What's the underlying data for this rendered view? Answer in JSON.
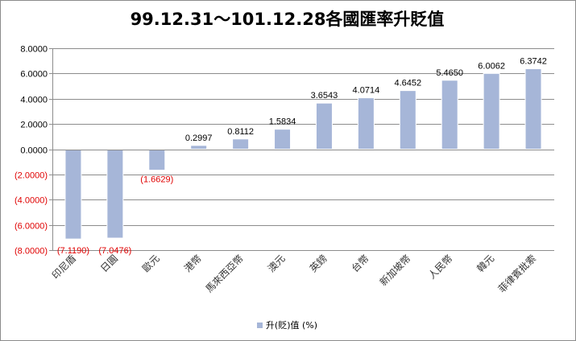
{
  "chart_data": {
    "type": "bar",
    "title": "99.12.31～101.12.28各國匯率升貶值",
    "categories": [
      "印尼盾",
      "日圓",
      "歐元",
      "港幣",
      "馬來西亞幣",
      "澳元",
      "英鎊",
      "台幣",
      "新加坡幣",
      "人民幣",
      "韓元",
      "菲律賓批索"
    ],
    "series": [
      {
        "name": "升(貶)值 (%)",
        "values": [
          -7.119,
          -7.0476,
          -1.6629,
          0.2997,
          0.8112,
          1.5834,
          3.6543,
          4.0714,
          4.6452,
          5.465,
          6.0062,
          6.3742
        ]
      }
    ],
    "data_labels": [
      "(7.1190)",
      "(7.0476)",
      "(1.6629)",
      "0.2997",
      "0.8112",
      "1.5834",
      "3.6543",
      "4.0714",
      "4.6452",
      "5.4650",
      "6.0062",
      "6.3742"
    ],
    "y_ticks": [
      8,
      6,
      4,
      2,
      0,
      -2,
      -4,
      -6,
      -8
    ],
    "y_tick_labels": [
      "8.0000",
      "6.0000",
      "4.0000",
      "2.0000",
      "0.0000",
      "(2.0000)",
      "(4.0000)",
      "(6.0000)",
      "(8.0000)"
    ],
    "ylim": [
      -8,
      8
    ],
    "xlabel": "",
    "ylabel": "",
    "grid": true,
    "legend_position": "bottom",
    "colors": {
      "bar": "#a6b6d8",
      "bar_edge": "#ffffff",
      "negative_text": "#e00000",
      "positive_text": "#000000",
      "grid": "#8c8c8c"
    }
  }
}
